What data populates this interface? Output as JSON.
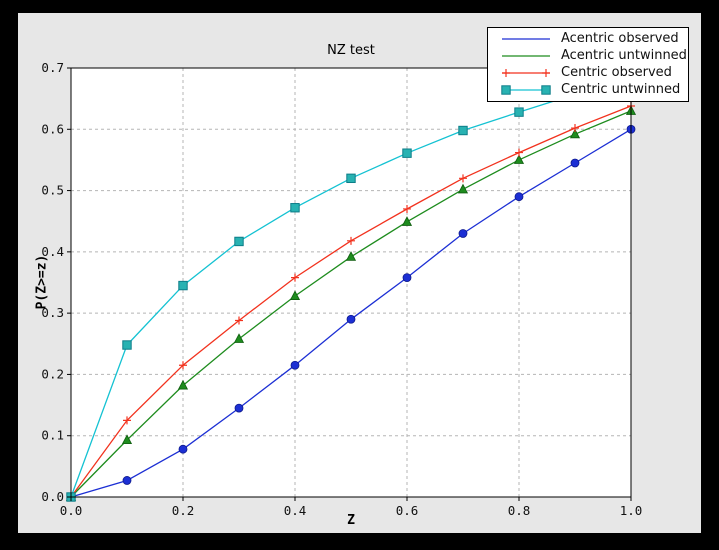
{
  "window": {
    "border_color": "#000000"
  },
  "colors": {
    "figure_bg": "#e7e7e7",
    "plot_bg": "#ffffff",
    "grid": "#b5b5b5",
    "axis": "#000000",
    "text": "#111111"
  },
  "chart_data": {
    "type": "line",
    "title": "NZ test",
    "xlabel": "Z",
    "ylabel": "P(Z>=z)",
    "xlim": [
      0.0,
      1.0
    ],
    "ylim": [
      0.0,
      0.7
    ],
    "xticks": [
      "0.0",
      "0.2",
      "0.4",
      "0.6",
      "0.8",
      "1.0"
    ],
    "yticks": [
      "0.0",
      "0.1",
      "0.2",
      "0.3",
      "0.4",
      "0.5",
      "0.6",
      "0.7"
    ],
    "grid": true,
    "grid_style": "dashed",
    "legend_position": "upper right",
    "x": [
      0.0,
      0.1,
      0.2,
      0.3,
      0.4,
      0.5,
      0.6,
      0.7,
      0.8,
      0.9,
      1.0
    ],
    "series": [
      {
        "name": "Acentric observed",
        "color": "#1c2fd4",
        "marker": "circle",
        "marker_fill": "#1c2fd4",
        "marker_edge": "#0e1a8c",
        "legend_marker": false,
        "values": [
          0.0,
          0.027,
          0.078,
          0.145,
          0.215,
          0.29,
          0.358,
          0.43,
          0.49,
          0.545,
          0.6
        ]
      },
      {
        "name": "Acentric untwinned",
        "color": "#1e8c1e",
        "marker": "triangle",
        "marker_fill": "#1e8c1e",
        "marker_edge": "#0e5c0e",
        "legend_marker": false,
        "values": [
          0.0,
          0.093,
          0.182,
          0.258,
          0.328,
          0.392,
          0.449,
          0.502,
          0.55,
          0.592,
          0.63
        ]
      },
      {
        "name": "Centric observed",
        "color": "#f2321e",
        "marker": "plus",
        "marker_fill": "#f2321e",
        "marker_edge": "#f2321e",
        "legend_marker": true,
        "values": [
          0.0,
          0.125,
          0.215,
          0.288,
          0.358,
          0.418,
          0.47,
          0.52,
          0.562,
          0.602,
          0.638
        ]
      },
      {
        "name": "Centric untwinned",
        "color": "#14c2d2",
        "marker": "square",
        "marker_fill": "#28b2b2",
        "marker_edge": "#0c7d88",
        "legend_marker": true,
        "values": [
          0.0,
          0.248,
          0.345,
          0.417,
          0.472,
          0.52,
          0.561,
          0.598,
          0.628,
          0.657,
          0.683
        ]
      }
    ]
  }
}
